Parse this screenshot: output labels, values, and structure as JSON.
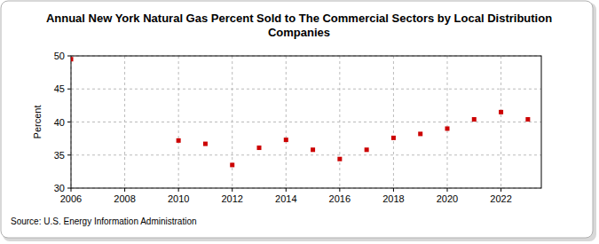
{
  "chart_data": {
    "type": "scatter",
    "title": "Annual New York Natural Gas Percent Sold to The Commercial Sectors by Local Distribution Companies",
    "y_label": "Percent",
    "source": "Source: U.S. Energy Information Administration",
    "x": [
      2006,
      2010,
      2011,
      2012,
      2013,
      2014,
      2015,
      2016,
      2017,
      2018,
      2019,
      2020,
      2021,
      2022,
      2023
    ],
    "series": [
      {
        "name": "Percent",
        "color": "#cc0000",
        "marker": "square",
        "values": [
          49.5,
          37.2,
          36.7,
          33.5,
          36.1,
          37.3,
          35.8,
          34.4,
          35.8,
          37.6,
          38.2,
          39.0,
          40.4,
          41.5,
          40.4
        ]
      }
    ],
    "xlim": [
      2006,
      2023.5
    ],
    "xticks": [
      2006,
      2008,
      2010,
      2012,
      2014,
      2016,
      2018,
      2020,
      2022
    ],
    "ylim": [
      30,
      50
    ],
    "yticks": [
      30,
      35,
      40,
      45,
      50
    ],
    "grid": true
  }
}
